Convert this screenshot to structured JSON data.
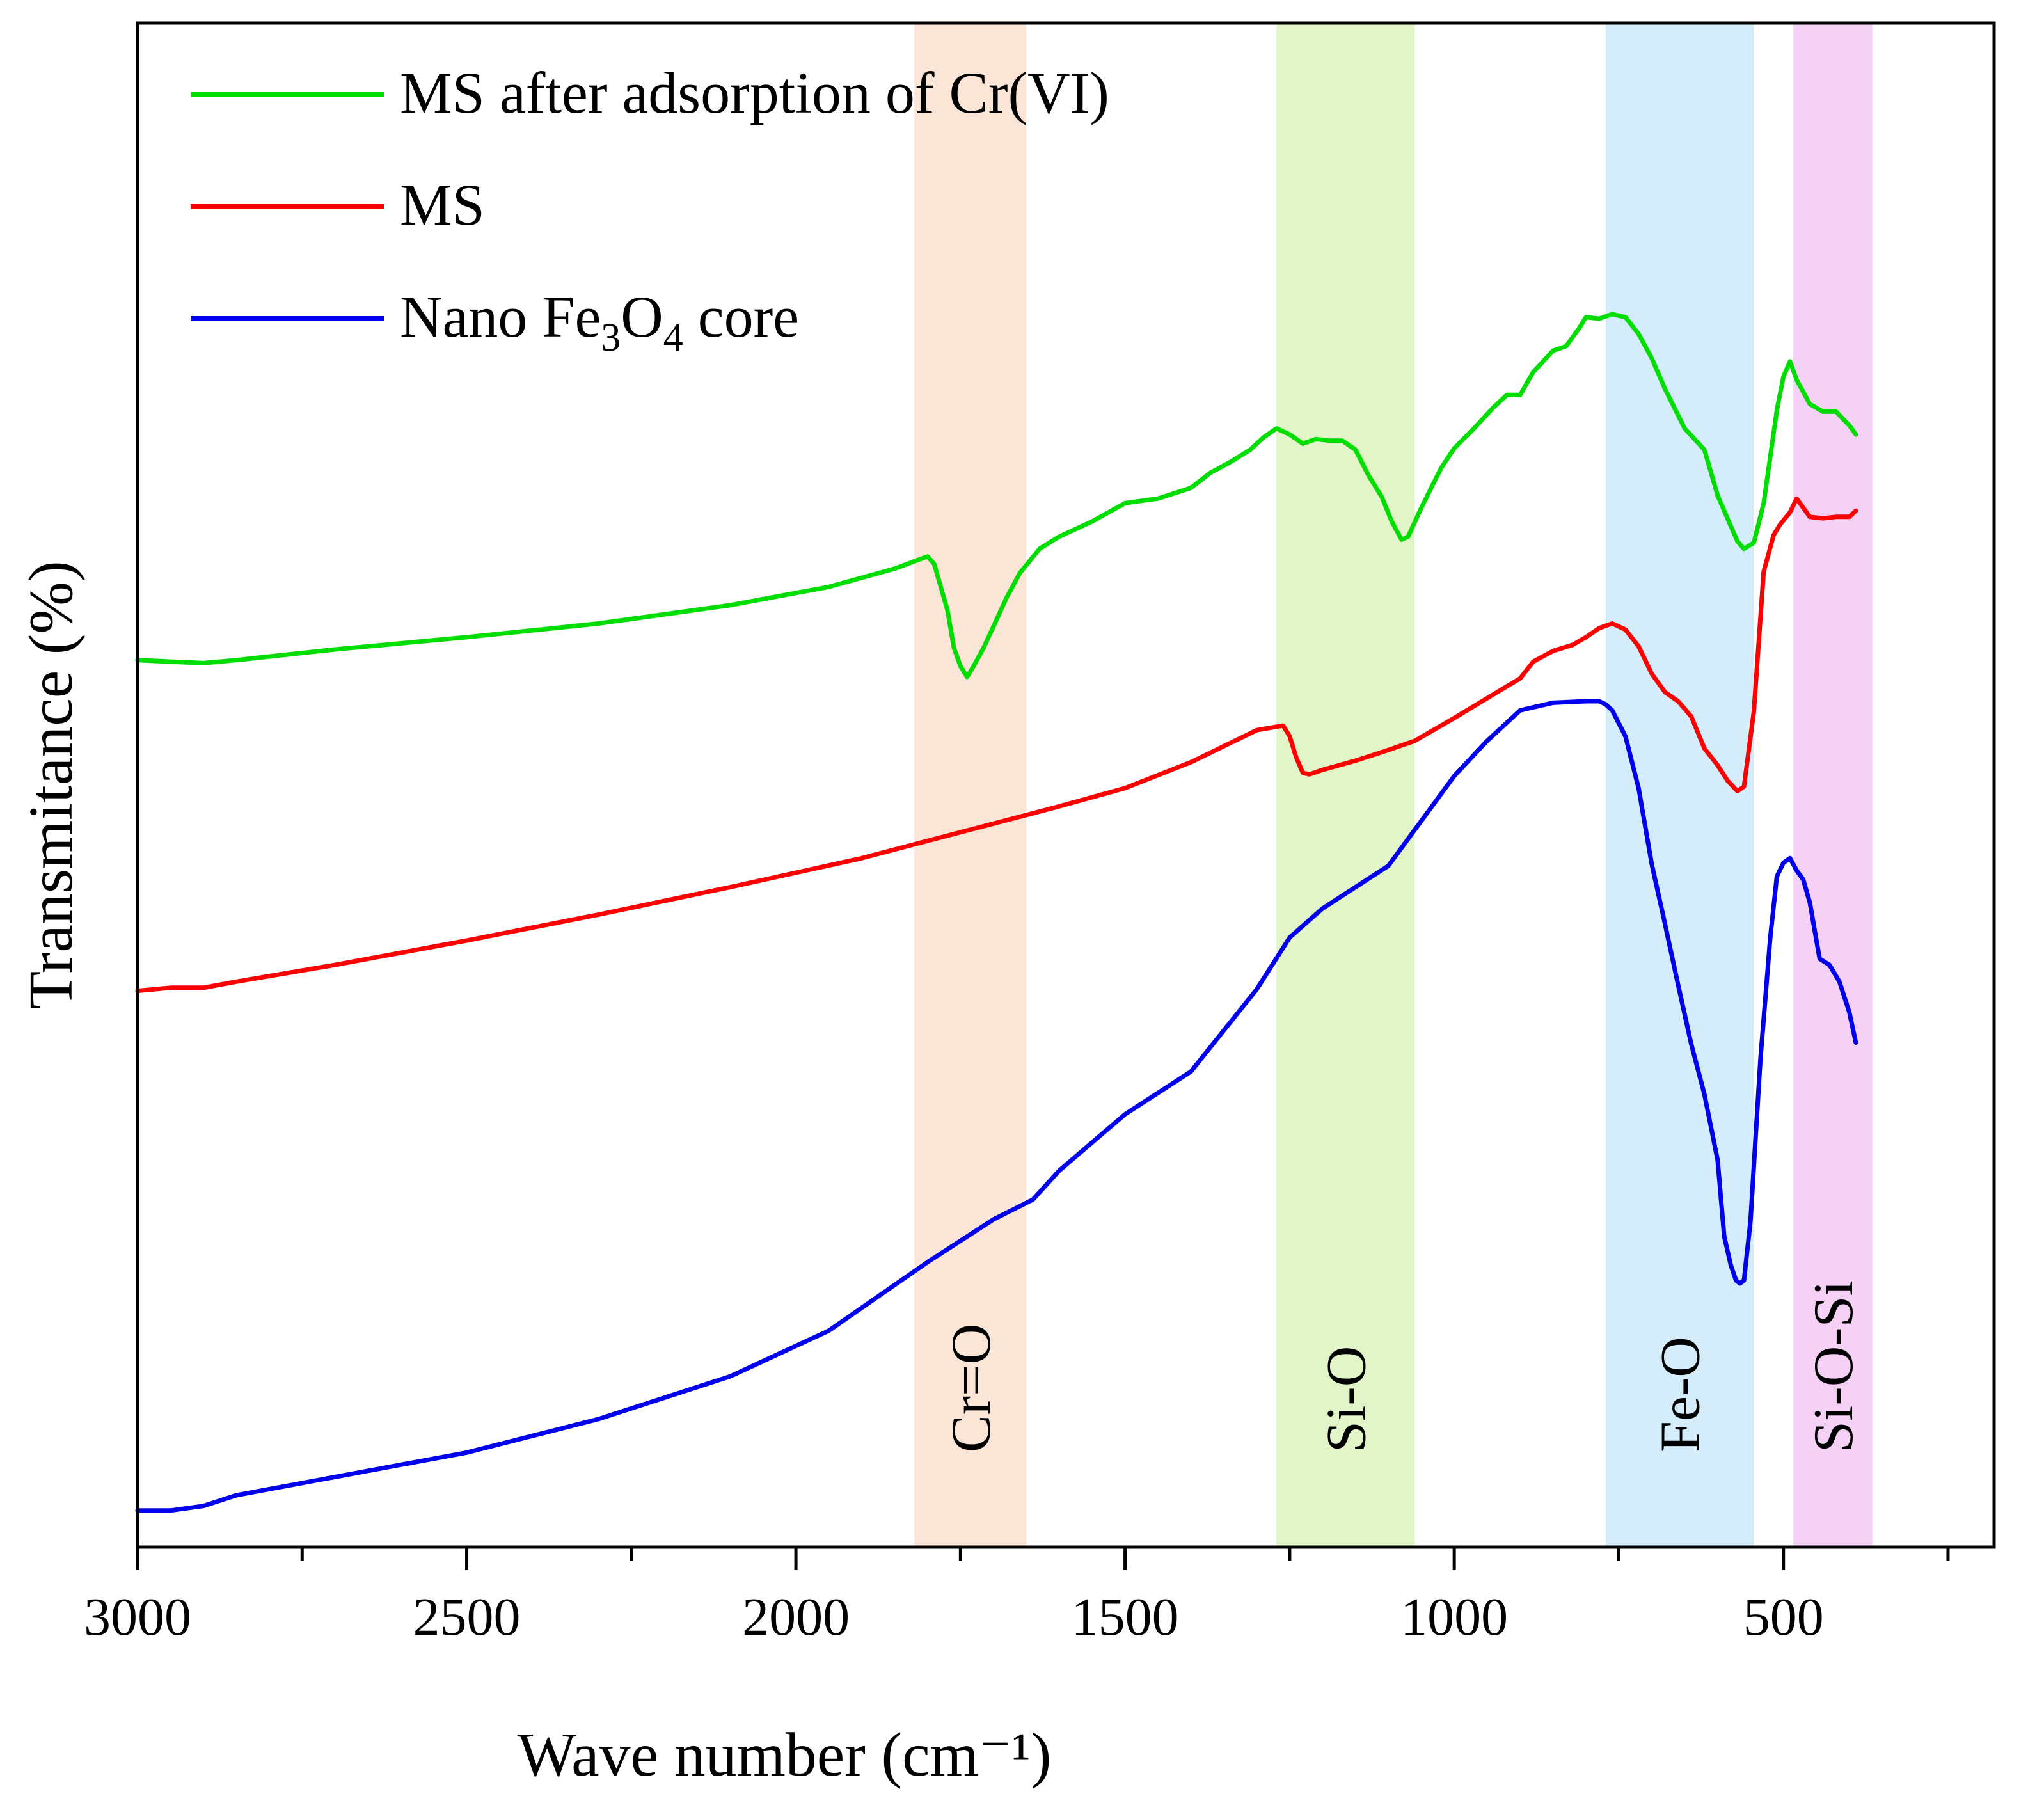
{
  "chart_data": {
    "type": "line",
    "xlabel": "Wave number (cm⁻¹)",
    "ylabel": "Transmitance (%)",
    "x_range": [
      3000,
      180
    ],
    "y_range": [
      0,
      100
    ],
    "x_ticks": [
      3000,
      2500,
      2000,
      1500,
      1000,
      500
    ],
    "x_tick_labels": [
      "3000",
      "2500",
      "2000",
      "1500",
      "1000",
      "500"
    ],
    "minor_ticks": true,
    "legend_position": "top-left",
    "bands": [
      {
        "label": "Cr=O",
        "from": 1820,
        "to": 1650,
        "color": "#fbe5d6"
      },
      {
        "label": "Si-O",
        "from": 1270,
        "to": 1060,
        "color": "#e2f5c8"
      },
      {
        "label": "Fe-O",
        "from": 770,
        "to": 545,
        "color": "#d5ecfa"
      },
      {
        "label": "Si-O-Si",
        "from": 485,
        "to": 365,
        "color": "#f5d2f5"
      }
    ],
    "series": [
      {
        "name": "MS after adsorption of Cr(VI)",
        "legend_parts": [
          {
            "t": "MS after adsorption of Cr(VI)"
          }
        ],
        "color": "#00dd00",
        "x": [
          3000,
          2950,
          2900,
          2850,
          2700,
          2500,
          2300,
          2100,
          1950,
          1850,
          1800,
          1790,
          1780,
          1770,
          1760,
          1750,
          1740,
          1730,
          1715,
          1700,
          1680,
          1660,
          1630,
          1600,
          1550,
          1500,
          1450,
          1400,
          1370,
          1340,
          1310,
          1290,
          1270,
          1250,
          1230,
          1210,
          1190,
          1170,
          1150,
          1130,
          1110,
          1095,
          1080,
          1070,
          1050,
          1020,
          1000,
          970,
          940,
          920,
          900,
          880,
          850,
          830,
          810,
          800,
          780,
          760,
          740,
          720,
          700,
          680,
          650,
          620,
          600,
          580,
          570,
          560,
          545,
          530,
          510,
          500,
          490,
          480,
          460,
          440,
          420,
          400,
          390
        ],
        "y": [
          58.2,
          58.1,
          58.0,
          58.2,
          58.9,
          59.7,
          60.6,
          61.8,
          63.0,
          64.2,
          65.0,
          64.5,
          63.0,
          61.5,
          59.0,
          57.8,
          57.1,
          57.8,
          59.0,
          60.4,
          62.3,
          63.9,
          65.5,
          66.3,
          67.3,
          68.5,
          68.8,
          69.5,
          70.5,
          71.2,
          72.0,
          72.8,
          73.4,
          73.0,
          72.4,
          72.7,
          72.6,
          72.6,
          72.0,
          70.3,
          68.9,
          67.3,
          66.1,
          66.3,
          68.2,
          70.8,
          72.1,
          73.4,
          74.8,
          75.6,
          75.6,
          77.1,
          78.5,
          78.8,
          80.0,
          80.7,
          80.6,
          80.9,
          80.7,
          79.6,
          78.0,
          76.0,
          73.4,
          72.0,
          69.0,
          67.0,
          66.0,
          65.5,
          65.9,
          68.5,
          74.6,
          76.8,
          77.8,
          76.6,
          75.0,
          74.5,
          74.5,
          73.6,
          73.0
        ]
      },
      {
        "name": "MS",
        "legend_parts": [
          {
            "t": "MS"
          }
        ],
        "color": "#ff0000",
        "x": [
          3000,
          2950,
          2900,
          2850,
          2700,
          2500,
          2300,
          2100,
          1900,
          1750,
          1600,
          1500,
          1400,
          1300,
          1260,
          1250,
          1240,
          1230,
          1220,
          1200,
          1150,
          1100,
          1060,
          1000,
          950,
          900,
          880,
          850,
          820,
          800,
          780,
          760,
          740,
          720,
          700,
          680,
          660,
          640,
          620,
          600,
          585,
          570,
          560,
          545,
          530,
          515,
          505,
          490,
          480,
          460,
          440,
          420,
          400,
          390
        ],
        "y": [
          36.5,
          36.7,
          36.7,
          37.1,
          38.2,
          39.8,
          41.5,
          43.3,
          45.2,
          46.9,
          48.6,
          49.8,
          51.5,
          53.6,
          53.9,
          53.2,
          51.8,
          50.8,
          50.7,
          51.0,
          51.6,
          52.3,
          52.9,
          54.4,
          55.7,
          57.0,
          58.1,
          58.8,
          59.2,
          59.7,
          60.3,
          60.6,
          60.2,
          59.1,
          57.3,
          56.1,
          55.5,
          54.5,
          52.4,
          51.3,
          50.3,
          49.6,
          49.9,
          54.8,
          64.0,
          66.4,
          67.1,
          67.9,
          68.8,
          67.6,
          67.5,
          67.6,
          67.6,
          68.0
        ]
      },
      {
        "name": "Nano Fe3O4 core",
        "legend_parts": [
          {
            "t": "Nano Fe"
          },
          {
            "t": "3",
            "sub": true
          },
          {
            "t": "O"
          },
          {
            "t": "4",
            "sub": true
          },
          {
            "t": " core"
          }
        ],
        "color": "#0000ee",
        "x": [
          3000,
          2950,
          2900,
          2850,
          2700,
          2500,
          2300,
          2100,
          1950,
          1850,
          1800,
          1700,
          1640,
          1600,
          1500,
          1400,
          1300,
          1250,
          1200,
          1100,
          1000,
          950,
          900,
          850,
          800,
          780,
          770,
          760,
          740,
          720,
          700,
          680,
          660,
          640,
          620,
          600,
          590,
          580,
          572,
          566,
          560,
          550,
          535,
          520,
          510,
          500,
          490,
          480,
          470,
          460,
          445,
          430,
          415,
          400,
          390
        ],
        "y": [
          2.4,
          2.4,
          2.7,
          3.4,
          4.6,
          6.2,
          8.4,
          11.2,
          14.2,
          17.2,
          18.7,
          21.5,
          22.8,
          24.7,
          28.4,
          31.2,
          36.6,
          40.0,
          41.9,
          44.7,
          50.6,
          52.9,
          54.9,
          55.4,
          55.5,
          55.5,
          55.3,
          54.9,
          53.2,
          49.8,
          44.8,
          40.9,
          36.9,
          33.0,
          29.7,
          25.4,
          20.4,
          18.5,
          17.5,
          17.3,
          17.5,
          21.4,
          32.0,
          40.0,
          44.0,
          44.9,
          45.2,
          44.4,
          43.8,
          42.3,
          38.6,
          38.2,
          37.1,
          35.1,
          33.1
        ]
      }
    ]
  }
}
